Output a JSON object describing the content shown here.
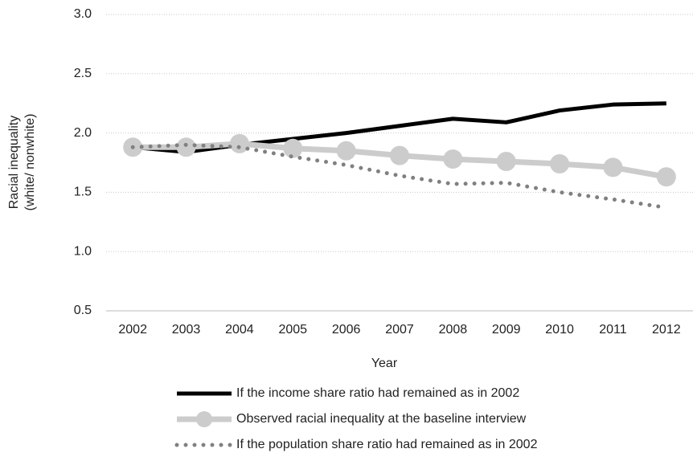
{
  "chart_data": {
    "type": "line",
    "x_label": "Year",
    "y_label": [
      "Racial inequality",
      "(white/ nonwhite)"
    ],
    "categories": [
      "2002",
      "2003",
      "2004",
      "2005",
      "2006",
      "2007",
      "2008",
      "2009",
      "2010",
      "2011",
      "2012"
    ],
    "ylim": [
      0.5,
      3
    ],
    "yticks": [
      0.5,
      {
        "value": 1,
        "label": "1.0"
      },
      1.5,
      {
        "value": 2,
        "label": "2.0"
      },
      2.5,
      {
        "value": 3,
        "label": "3.0"
      }
    ],
    "grid": true,
    "legend": "bottom",
    "series": [
      {
        "name": "If the income share ratio had remained as in 2002",
        "color": "#000000",
        "style": "solid",
        "marker": "none",
        "values": [
          1.88,
          1.84,
          1.9,
          1.95,
          2.0,
          2.06,
          2.12,
          2.09,
          2.19,
          2.24,
          2.25
        ]
      },
      {
        "name": "Observed racial inequality at the baseline interview",
        "color": "#cccccc",
        "style": "solid",
        "marker": "circle",
        "values": [
          1.88,
          1.88,
          1.91,
          1.87,
          1.85,
          1.81,
          1.78,
          1.76,
          1.74,
          1.71,
          1.63
        ]
      },
      {
        "name": "If the population share ratio had remained as in 2002",
        "color": "#808080",
        "style": "dotted",
        "marker": "none",
        "values": [
          1.88,
          1.9,
          1.88,
          1.8,
          1.73,
          1.64,
          1.57,
          1.58,
          1.5,
          1.44,
          1.37
        ]
      }
    ]
  }
}
